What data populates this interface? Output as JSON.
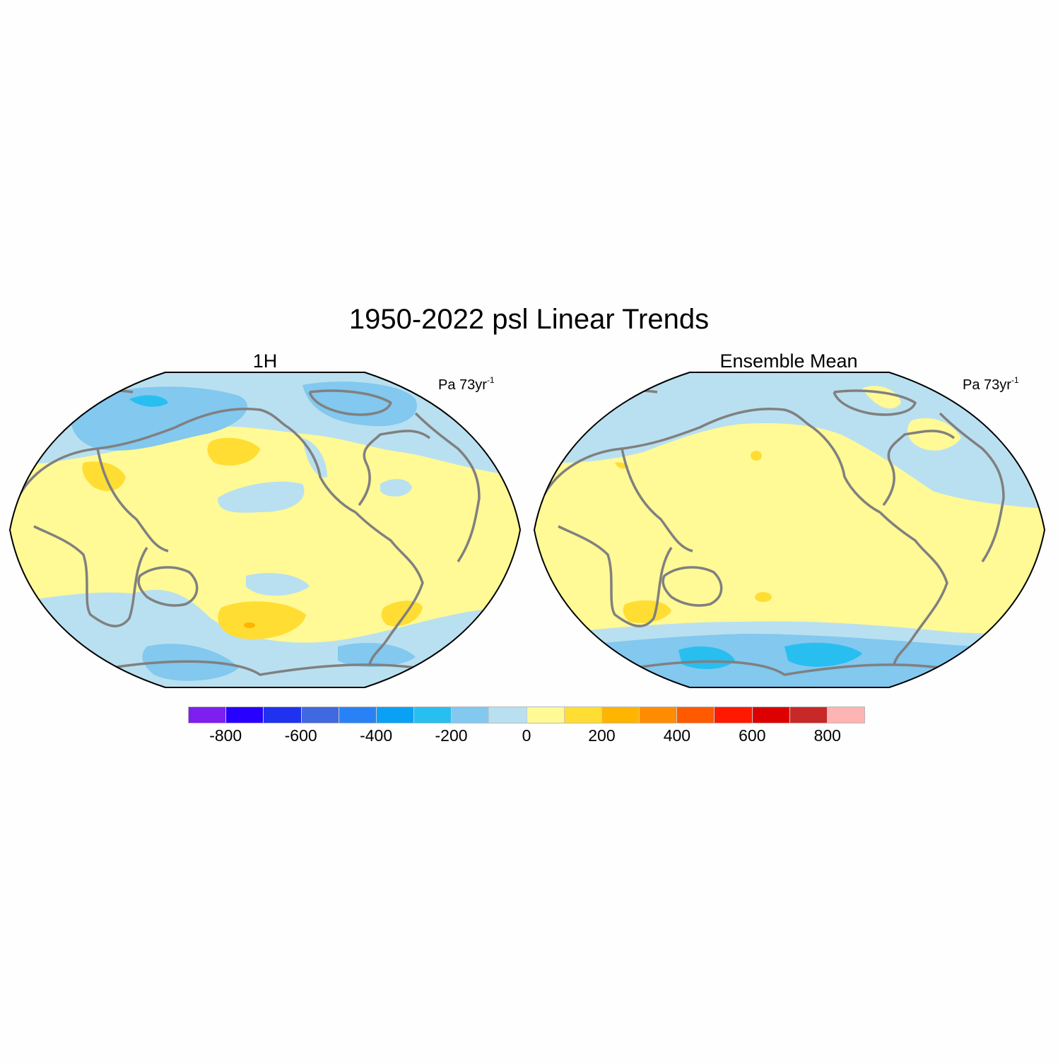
{
  "title": "1950-2022 psl Linear Trends",
  "panels": [
    {
      "name": "1H",
      "units": "Pa 73yr",
      "units_exp": "-1"
    },
    {
      "name": "Ensemble Mean",
      "units": "Pa 73yr",
      "units_exp": "-1"
    }
  ],
  "colorbar": {
    "colors": [
      "#7d1ff0",
      "#2800ff",
      "#1e32f0",
      "#4068e0",
      "#2882f5",
      "#0aa0f5",
      "#28bef0",
      "#82c8ef",
      "#b9e0f0",
      "#fff996",
      "#ffdd32",
      "#ffb400",
      "#ff8c00",
      "#ff5a00",
      "#ff1900",
      "#dc0000",
      "#c82828",
      "#ffb4b4"
    ],
    "tick_labels": [
      "-800",
      "-600",
      "-400",
      "-200",
      "0",
      "200",
      "400",
      "600",
      "800"
    ]
  },
  "chart_data": {
    "type": "heatmap",
    "title": "1950-2022 psl Linear Trends",
    "variable": "psl",
    "period": "1950-2022",
    "projection": "Robinson, centered near 150°W",
    "contour_interval": 100,
    "color_range": [
      -900,
      900
    ],
    "panels": [
      "1H",
      "Ensemble Mean"
    ]
  }
}
